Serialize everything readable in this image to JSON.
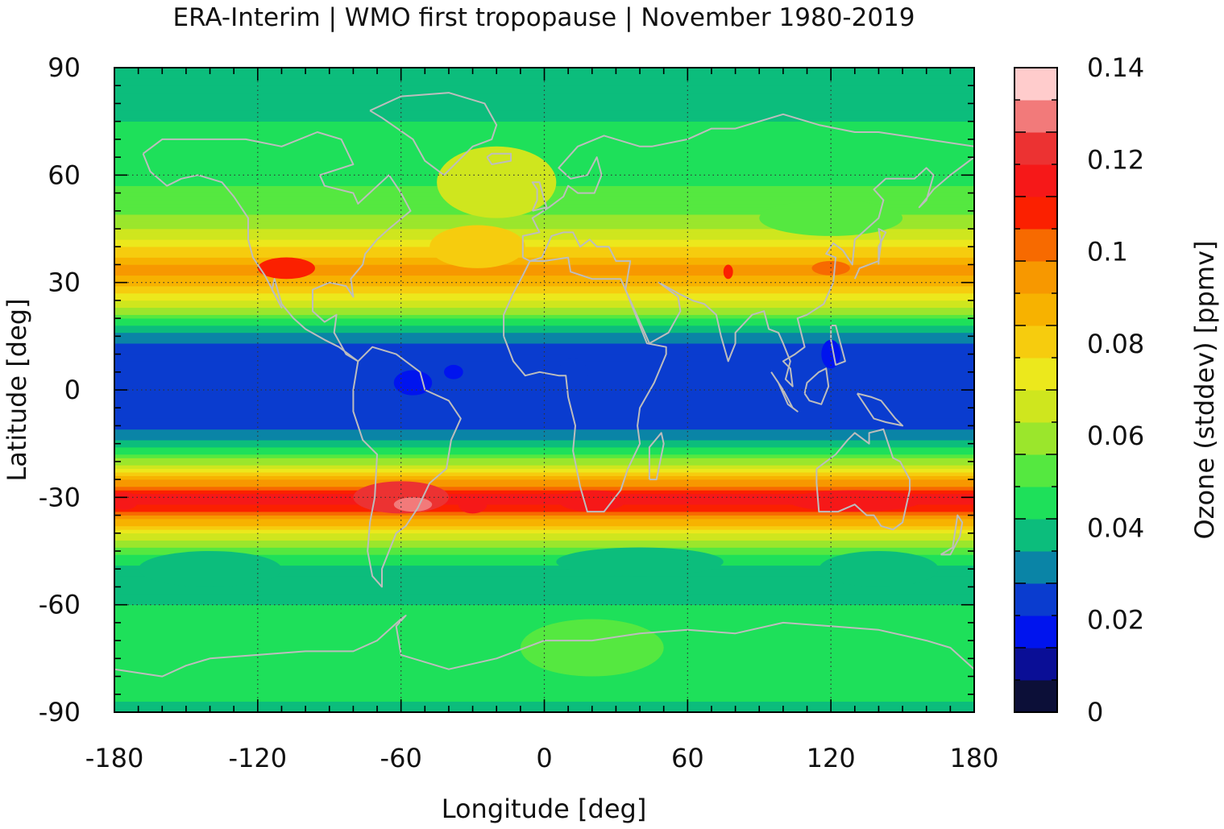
{
  "chart_data": {
    "type": "heatmap",
    "title": "ERA-Interim | WMO first tropopause | November 1980-2019",
    "xlabel": "Longitude [deg]",
    "ylabel": "Latitude [deg]",
    "colorbar_label": "Ozone (stddev) [ppmv]",
    "xlim": [
      -180,
      180
    ],
    "ylim": [
      -90,
      90
    ],
    "x_ticks": [
      -180,
      -120,
      -60,
      0,
      60,
      120,
      180
    ],
    "y_ticks": [
      -90,
      -60,
      -30,
      0,
      30,
      60,
      90
    ],
    "x_tick_labels": [
      "-180",
      "-120",
      "-60",
      "0",
      "60",
      "120",
      "180"
    ],
    "y_tick_labels": [
      "-90",
      "-60",
      "-30",
      "0",
      "30",
      "60",
      "90"
    ],
    "grid": true,
    "colorbar": {
      "range": [
        0,
        0.14
      ],
      "ticks": [
        0,
        0.02,
        0.04,
        0.06,
        0.08,
        0.1,
        0.12,
        0.14
      ],
      "tick_labels": [
        "0",
        "0.02",
        "0.04",
        "0.06",
        "0.08",
        "0.1",
        "0.12",
        "0.14"
      ],
      "colors": [
        "#0c0f38",
        "#0a0e96",
        "#0014ee",
        "#0a3ccf",
        "#0a84a6",
        "#0cbd7c",
        "#1ee05a",
        "#55e840",
        "#9be62c",
        "#cfe61e",
        "#ece81c",
        "#f6cc0e",
        "#f7b200",
        "#f79800",
        "#f76a00",
        "#fb2000",
        "#f61818",
        "#ec3232",
        "#f27a7a",
        "#ffcccc"
      ]
    },
    "zonal_profile": {
      "latitude": [
        -90,
        -85,
        -80,
        -75,
        -70,
        -65,
        -60,
        -55,
        -50,
        -45,
        -40,
        -35,
        -32,
        -30,
        -28,
        -25,
        -20,
        -15,
        -10,
        -5,
        0,
        5,
        10,
        15,
        20,
        25,
        30,
        33,
        35,
        40,
        45,
        50,
        55,
        60,
        65,
        70,
        75,
        80,
        85,
        90
      ],
      "ozone_stddev": [
        0.04,
        0.043,
        0.046,
        0.048,
        0.048,
        0.046,
        0.042,
        0.038,
        0.04,
        0.052,
        0.072,
        0.098,
        0.112,
        0.115,
        0.108,
        0.088,
        0.06,
        0.038,
        0.026,
        0.022,
        0.022,
        0.022,
        0.024,
        0.032,
        0.05,
        0.072,
        0.088,
        0.094,
        0.092,
        0.076,
        0.062,
        0.055,
        0.05,
        0.047,
        0.045,
        0.043,
        0.042,
        0.041,
        0.04,
        0.04
      ]
    }
  }
}
